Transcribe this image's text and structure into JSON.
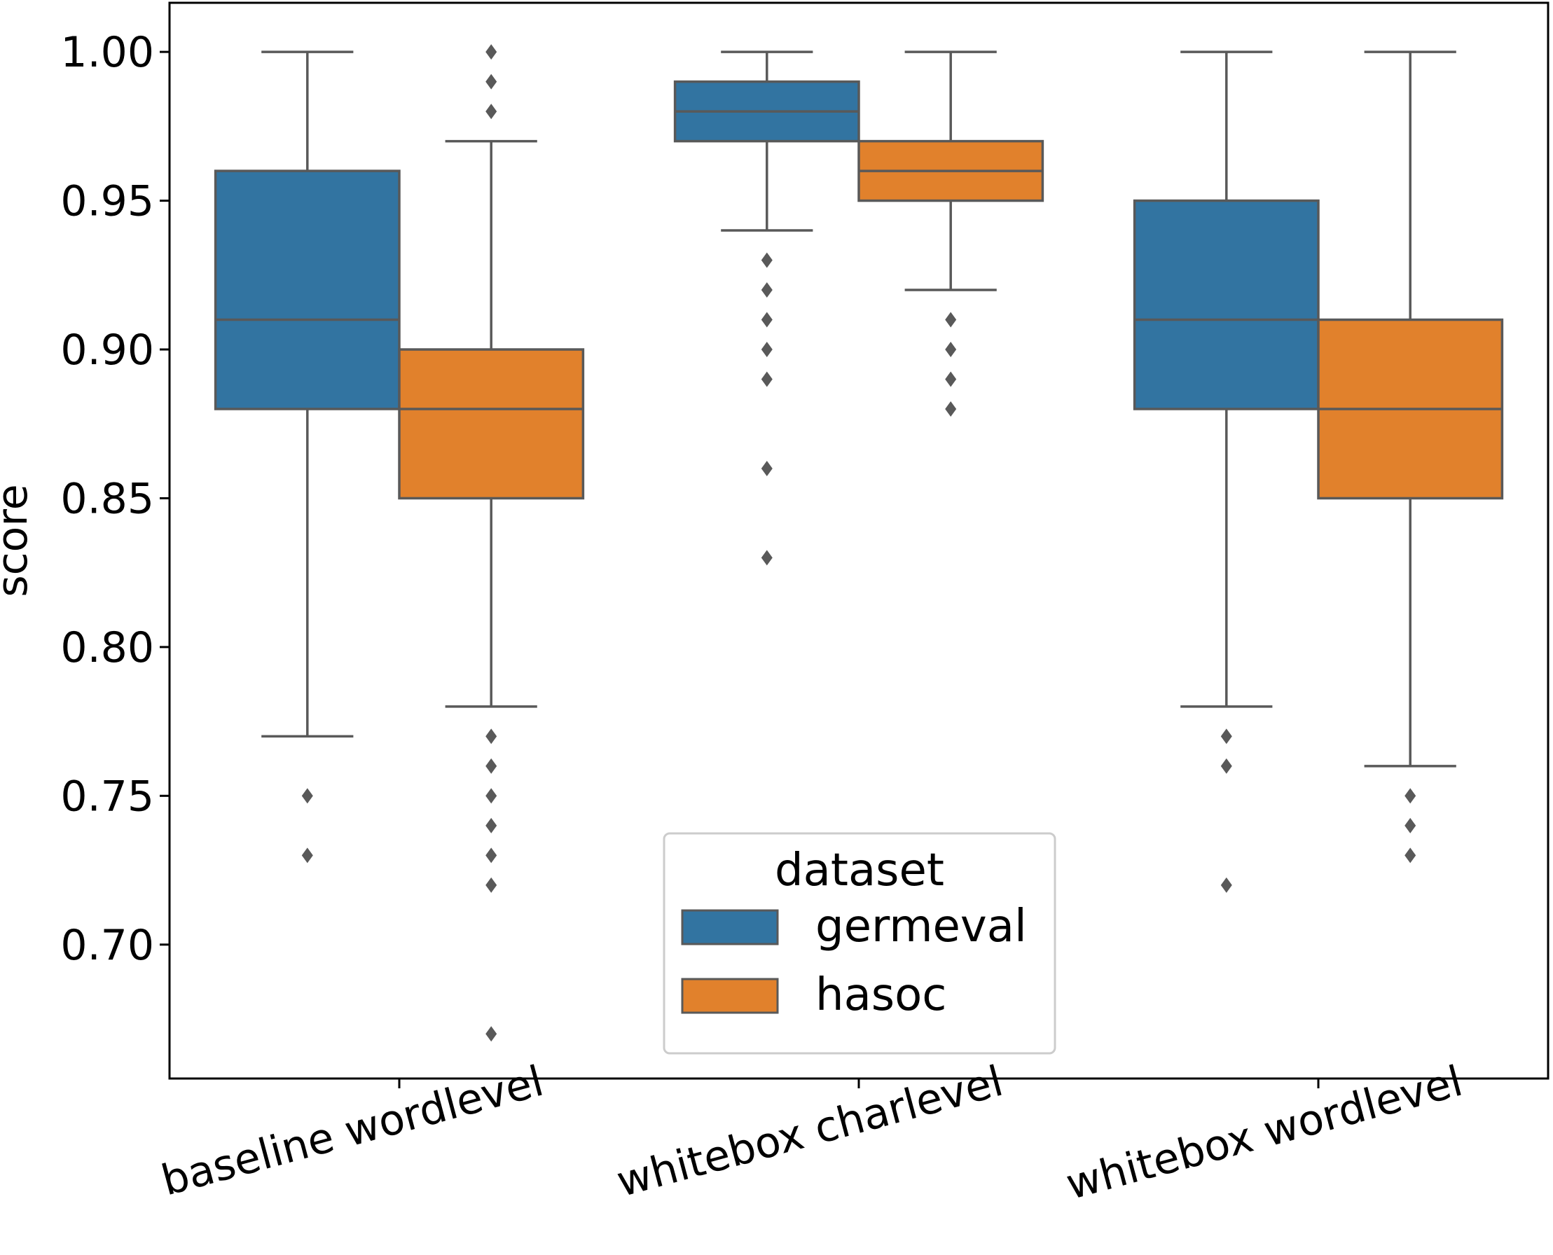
{
  "chart_data": {
    "type": "boxplot",
    "title": "",
    "xlabel": "",
    "ylabel": "score",
    "ylim": [
      0.655,
      1.0165
    ],
    "yticks": [
      0.7,
      0.75,
      0.8,
      0.85,
      0.9,
      0.95,
      1.0
    ],
    "ytick_labels": [
      "0.70",
      "0.75",
      "0.80",
      "0.85",
      "0.90",
      "0.95",
      "1.00"
    ],
    "categories": [
      "baseline wordlevel",
      "whitebox charlevel",
      "whitebox wordlevel"
    ],
    "grid": false,
    "legend": {
      "title": "dataset",
      "placement": "lower-center"
    },
    "series": [
      {
        "name": "germeval",
        "color": "#3274a1",
        "boxes": [
          {
            "whislo": 0.77,
            "q1": 0.88,
            "med": 0.91,
            "q3": 0.96,
            "whishi": 1.0,
            "fliers": [
              0.75,
              0.73
            ]
          },
          {
            "whislo": 0.94,
            "q1": 0.97,
            "med": 0.98,
            "q3": 0.99,
            "whishi": 1.0,
            "fliers": [
              0.93,
              0.92,
              0.91,
              0.9,
              0.89,
              0.86,
              0.83
            ]
          },
          {
            "whislo": 0.78,
            "q1": 0.88,
            "med": 0.91,
            "q3": 0.95,
            "whishi": 1.0,
            "fliers": [
              0.77,
              0.76,
              0.72
            ]
          }
        ]
      },
      {
        "name": "hasoc",
        "color": "#e1812c",
        "boxes": [
          {
            "whislo": 0.78,
            "q1": 0.85,
            "med": 0.88,
            "q3": 0.9,
            "whishi": 0.97,
            "fliers": [
              1.0,
              0.99,
              0.98,
              0.77,
              0.76,
              0.75,
              0.74,
              0.73,
              0.72,
              0.67
            ]
          },
          {
            "whislo": 0.92,
            "q1": 0.95,
            "med": 0.96,
            "q3": 0.97,
            "whishi": 1.0,
            "fliers": [
              0.91,
              0.9,
              0.89,
              0.88
            ]
          },
          {
            "whislo": 0.76,
            "q1": 0.85,
            "med": 0.88,
            "q3": 0.91,
            "whishi": 1.0,
            "fliers": [
              0.75,
              0.74,
              0.73
            ]
          }
        ]
      }
    ],
    "line_color": "#595959"
  }
}
